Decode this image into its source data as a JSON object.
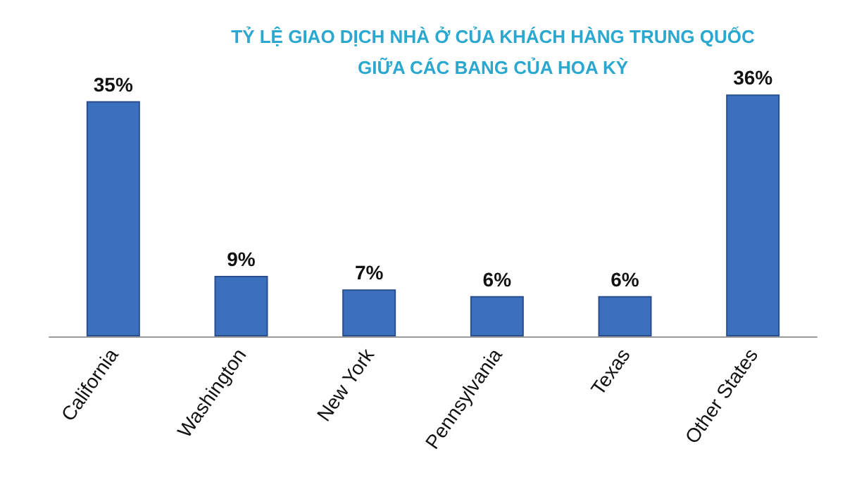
{
  "chart_data": {
    "type": "bar",
    "title": "TỶ LỆ GIAO DỊCH NHÀ Ở CỦA KHÁCH HÀNG TRUNG QUỐC\nGIỮA CÁC BANG CỦA HOA KỲ",
    "categories": [
      "California",
      "Washington",
      "New York",
      "Pennsylvania",
      "Texas",
      "Other States"
    ],
    "values": [
      35,
      9,
      7,
      6,
      6,
      36
    ],
    "value_labels": [
      "35%",
      "9%",
      "7%",
      "6%",
      "6%",
      "36%"
    ],
    "color": "#3d6fbf"
  }
}
